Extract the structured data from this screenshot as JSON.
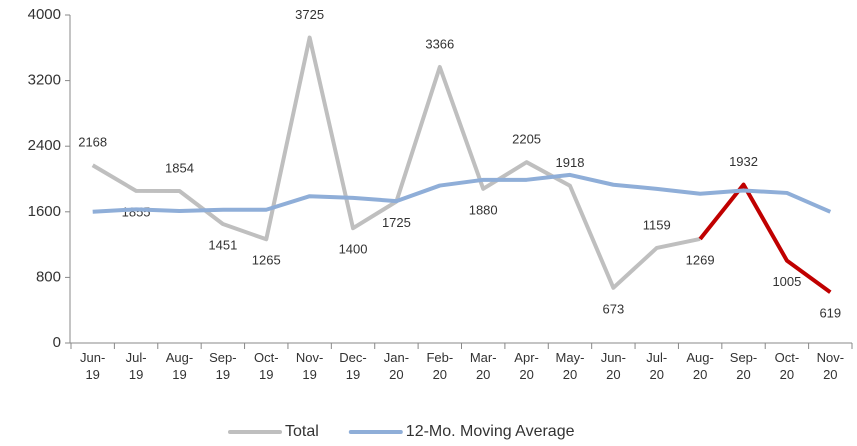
{
  "chart_data": {
    "type": "line",
    "categories": [
      "Jun-19",
      "Jul-19",
      "Aug-19",
      "Sep-19",
      "Oct-19",
      "Nov-19",
      "Dec-19",
      "Jan-20",
      "Feb-20",
      "Mar-20",
      "Apr-20",
      "May-20",
      "Jun-20",
      "Jul-20",
      "Aug-20",
      "Sep-20",
      "Oct-20",
      "Nov-20"
    ],
    "series": [
      {
        "name": "Total",
        "color": "#bfbfbf",
        "show_labels": true,
        "values": [
          2168,
          1855,
          1854,
          1451,
          1265,
          3725,
          1400,
          1725,
          3366,
          1880,
          2205,
          1918,
          673,
          1159,
          1269,
          1932,
          1005,
          619
        ]
      },
      {
        "name": "12-Mo. Moving Average",
        "color": "#8faed8",
        "show_labels": false,
        "values": [
          1600,
          1630,
          1610,
          1625,
          1625,
          1790,
          1770,
          1730,
          1920,
          1990,
          1990,
          2050,
          1930,
          1880,
          1820,
          1860,
          1830,
          1600
        ]
      }
    ],
    "highlight_start": "Aug-20",
    "highlight_color": "#c00000",
    "ylim": [
      0,
      4000
    ],
    "yticks": [
      0,
      800,
      1600,
      2400,
      3200,
      4000
    ],
    "grid": false,
    "legend": "bottom"
  }
}
